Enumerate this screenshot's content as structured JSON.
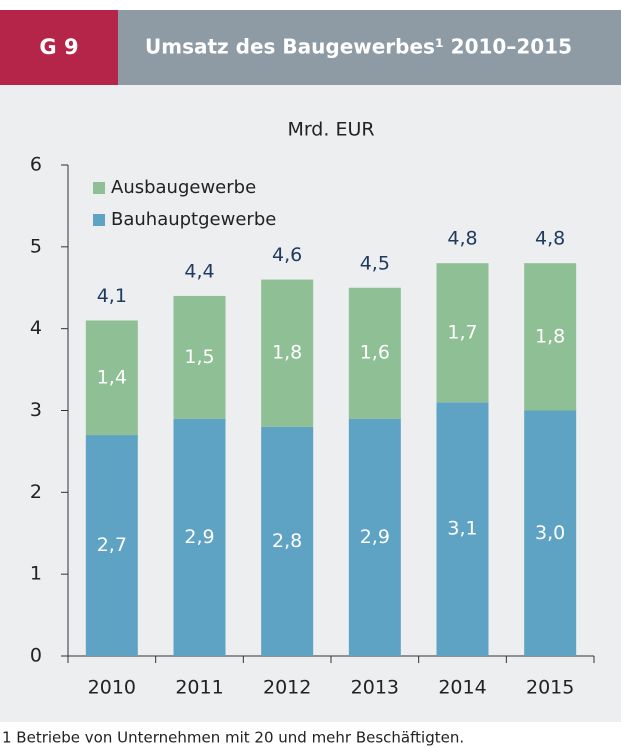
{
  "figure_label": "G 9",
  "chart_data": {
    "type": "bar",
    "stacked": true,
    "title": "Umsatz des Baugewerbes¹ 2010–2015",
    "unit_label": "Mrd. EUR",
    "categories": [
      "2010",
      "2011",
      "2012",
      "2013",
      "2014",
      "2015"
    ],
    "series": [
      {
        "name": "Bauhauptgewerbe",
        "color": "#5ea3c4",
        "values": [
          2.7,
          2.9,
          2.8,
          2.9,
          3.1,
          3.0
        ],
        "value_labels": [
          "2,7",
          "2,9",
          "2,8",
          "2,9",
          "3,1",
          "3,0"
        ]
      },
      {
        "name": "Ausbaugewerbe",
        "color": "#8fbf94",
        "values": [
          1.4,
          1.5,
          1.8,
          1.6,
          1.7,
          1.8
        ],
        "value_labels": [
          "1,4",
          "1,5",
          "1,8",
          "1,6",
          "1,7",
          "1,8"
        ]
      }
    ],
    "totals": {
      "values": [
        4.1,
        4.4,
        4.6,
        4.5,
        4.8,
        4.8
      ],
      "value_labels": [
        "4,1",
        "4,4",
        "4,6",
        "4,5",
        "4,8",
        "4,8"
      ]
    },
    "ylim": [
      0,
      6
    ],
    "yticks": [
      0,
      1,
      2,
      3,
      4,
      5,
      6
    ],
    "legend": "upper left"
  },
  "footnote": "1 Betriebe von Unternehmen mit 20 und mehr Beschäftigten."
}
